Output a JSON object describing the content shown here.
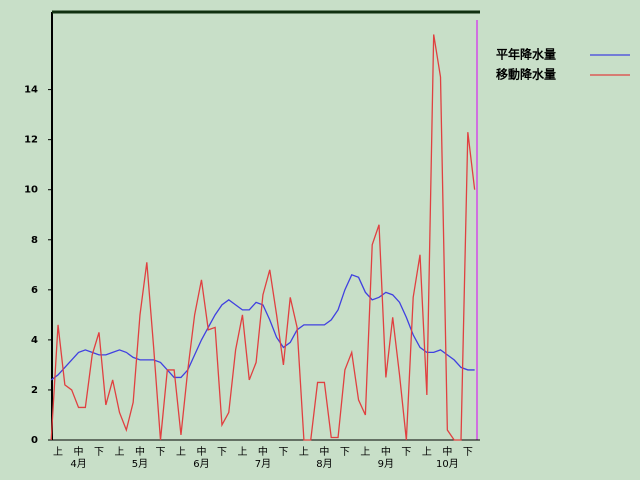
{
  "chart_data": {
    "type": "line",
    "categories": [
      null,
      "上",
      null,
      null,
      "中",
      null,
      null,
      "下",
      null,
      null,
      "上",
      null,
      null,
      "中",
      null,
      null,
      "下",
      null,
      null,
      "上",
      null,
      null,
      "中",
      null,
      null,
      "下",
      null,
      null,
      "上",
      null,
      null,
      "中",
      null,
      null,
      "下",
      null,
      null,
      "上",
      null,
      null,
      "中",
      null,
      null,
      "下",
      null,
      null,
      "上",
      null,
      null,
      "中",
      null,
      null,
      "下",
      null,
      null,
      "上",
      null,
      null,
      "中",
      null,
      null,
      "下",
      null
    ],
    "months": [
      "4月",
      "5月",
      "6月",
      "7月",
      "8月",
      "9月",
      "10月"
    ],
    "series": [
      {
        "name": "平年降水量",
        "color": "#4040e0",
        "values": [
          2.4,
          2.6,
          2.9,
          3.2,
          3.5,
          3.6,
          3.5,
          3.4,
          3.4,
          3.5,
          3.6,
          3.5,
          3.3,
          3.2,
          3.2,
          3.2,
          3.1,
          2.8,
          2.5,
          2.5,
          2.8,
          3.4,
          4.0,
          4.5,
          5.0,
          5.4,
          5.6,
          5.4,
          5.2,
          5.2,
          5.5,
          5.4,
          4.8,
          4.1,
          3.7,
          3.9,
          4.4,
          4.6,
          4.6,
          4.6,
          4.6,
          4.8,
          5.2,
          6.0,
          6.6,
          6.5,
          5.9,
          5.6,
          5.7,
          5.9,
          5.8,
          5.5,
          4.9,
          4.2,
          3.7,
          3.5,
          3.5,
          3.6,
          3.4,
          3.2,
          2.9,
          2.8,
          2.8
        ]
      },
      {
        "name": "移動降水量",
        "color": "#e04040",
        "values": [
          0,
          4.6,
          2.2,
          2.0,
          1.3,
          1.3,
          3.4,
          4.3,
          1.4,
          2.4,
          1.1,
          0.4,
          1.5,
          5.0,
          7.1,
          3.7,
          0,
          2.8,
          2.8,
          0.2,
          2.8,
          5.0,
          6.4,
          4.4,
          4.5,
          0.6,
          1.1,
          3.6,
          5.0,
          2.4,
          3.1,
          5.8,
          6.8,
          5.0,
          3.0,
          5.7,
          4.5,
          0,
          0,
          2.3,
          2.3,
          0.1,
          0.1,
          2.8,
          3.5,
          1.6,
          1.0,
          7.8,
          8.6,
          2.5,
          4.9,
          2.6,
          0,
          5.7,
          7.4,
          1.8,
          16.2,
          14.5,
          0.4,
          0,
          0,
          12.3,
          10.0
        ]
      }
    ],
    "ylim": [
      0,
      17.1
    ],
    "yticks": [
      0,
      2,
      4,
      6,
      8,
      10,
      12,
      14
    ]
  }
}
